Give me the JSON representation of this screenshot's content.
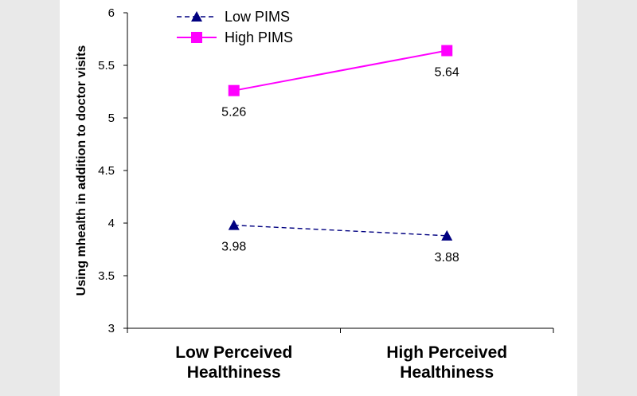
{
  "chart_data": {
    "type": "line",
    "title": "",
    "xlabel": "",
    "ylabel": "Using mhealth in addition to doctor visits",
    "categories": [
      [
        "Low Perceived",
        "Healthiness"
      ],
      [
        "High Perceived",
        "Healthiness"
      ]
    ],
    "ylim": [
      3,
      6
    ],
    "yticks": [
      3,
      3.5,
      4,
      4.5,
      5,
      5.5,
      6
    ],
    "ytick_labels": [
      "3",
      "3.5",
      "4",
      "4.5",
      "5",
      "5.5",
      "6"
    ],
    "grid": false,
    "legend_position": "top-left",
    "series": [
      {
        "name": "Low PIMS",
        "values": [
          3.98,
          3.88
        ],
        "labels": [
          "3.98",
          "3.88"
        ],
        "color": "#000080",
        "marker": "triangle",
        "line_style": "dashed"
      },
      {
        "name": "High PIMS",
        "values": [
          5.26,
          5.64
        ],
        "labels": [
          "5.26",
          "5.64"
        ],
        "color": "#ff00ff",
        "marker": "square",
        "line_style": "solid"
      }
    ]
  }
}
